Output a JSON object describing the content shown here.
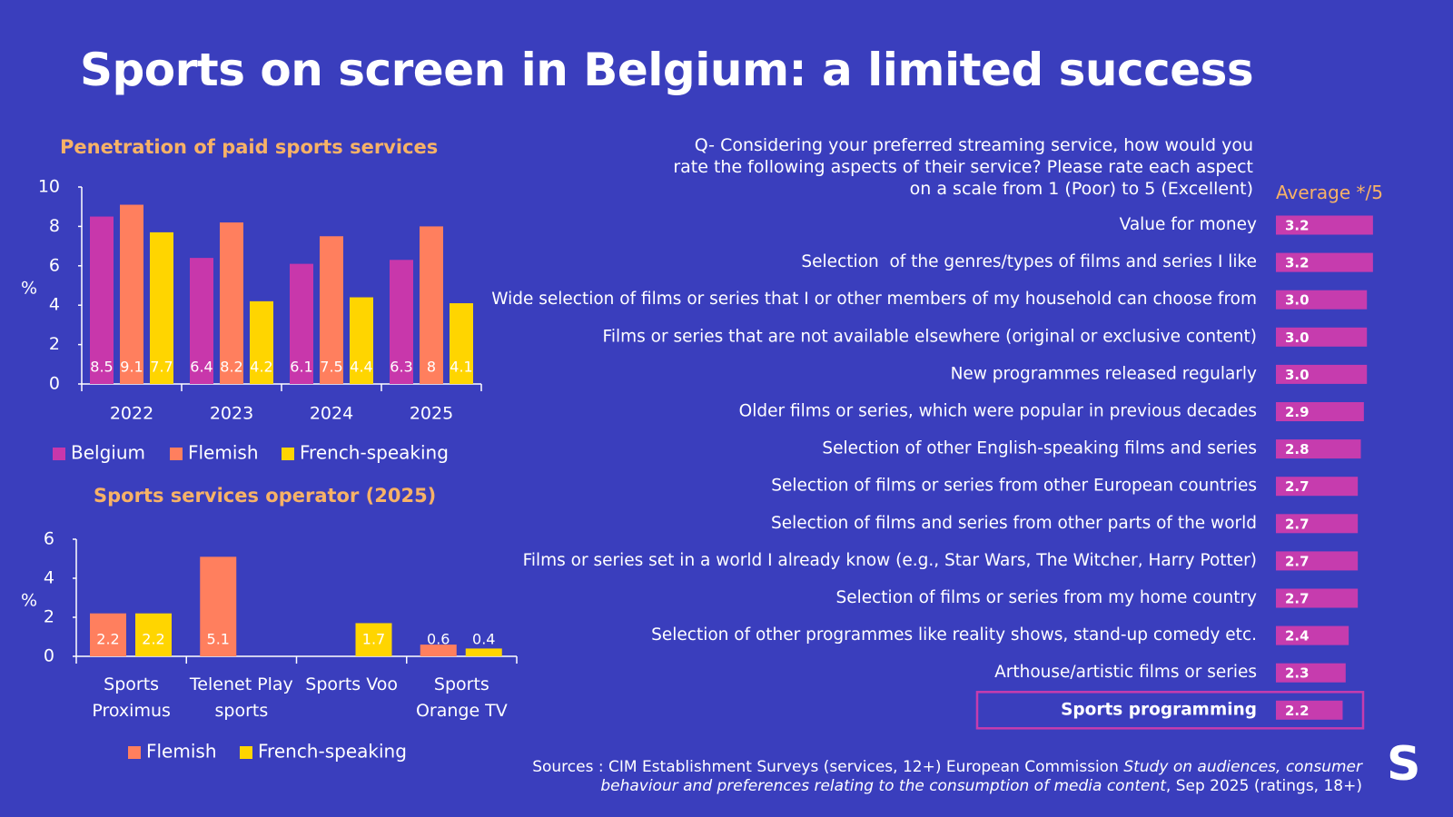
{
  "title": "Sports on screen in Belgium: a limited success",
  "logo": "S",
  "source": {
    "text_start": "Sources : CIM Establishment Surveys (services, 12+) European Commission ",
    "text_italic": "Study on audiences, consumer behaviour and preferences relating to the consumption of media content",
    "text_end": ", Sep 2025 (ratings, 18+)"
  },
  "chart_data": [
    {
      "type": "bar",
      "title": "Penetration of paid sports services",
      "y_label": "%",
      "categories": [
        "2022",
        "2023",
        "2024",
        "2025"
      ],
      "series": [
        {
          "name": "Belgium",
          "color": "#c837ab",
          "values": [
            8.5,
            6.4,
            6.1,
            6.3
          ]
        },
        {
          "name": "Flemish",
          "color": "#ff7f5e",
          "values": [
            9.1,
            8.2,
            7.5,
            8.0
          ]
        },
        {
          "name": "French-speaking",
          "color": "#ffd500",
          "values": [
            7.7,
            4.2,
            4.4,
            4.1
          ]
        }
      ],
      "ylim": [
        0,
        10
      ],
      "yticks": [
        0,
        2,
        4,
        6,
        8,
        10
      ],
      "grid": false,
      "legend": "bottom"
    },
    {
      "type": "bar",
      "title": "Sports services operator (2025)",
      "y_label": "%",
      "categories": [
        "Sports Proximus",
        "Telenet Play sports",
        "Sports Voo",
        "Sports Orange TV"
      ],
      "series": [
        {
          "name": "Flemish",
          "color": "#ff7f5e",
          "values": [
            2.2,
            5.1,
            null,
            0.6
          ]
        },
        {
          "name": "French-speaking",
          "color": "#ffd500",
          "values": [
            2.2,
            null,
            1.7,
            0.4
          ]
        }
      ],
      "ylim": [
        0,
        6
      ],
      "yticks": [
        0,
        2,
        4,
        6
      ],
      "grid": false,
      "legend": "bottom"
    },
    {
      "type": "hbar",
      "title": "Q- Considering your preferred streaming service, how would you rate the following aspects of their service? Please rate each aspect on a scale from 1 (Poor) to 5 (Excellent)",
      "value_header": "Average */5",
      "categories": [
        "Value for money",
        "Selection  of the genres/types of films and series I like",
        "Wide selection of films or series that I or other members of my household can choose from",
        "Films or series that are not available elsewhere (original or exclusive content)",
        "New programmes released regularly",
        "Older films or series, which were popular in previous decades",
        "Selection of other English-speaking films and series",
        "Selection of films or series from other European countries",
        "Selection of films and series from other parts of the world",
        "Films or series set in a world I already know (e.g., Star Wars, The Witcher, Harry Potter)",
        "Selection of films or series from my home country",
        "Selection of other programmes like reality shows, stand-up comedy etc.",
        "Arthouse/artistic films or series",
        "Sports programming"
      ],
      "values": [
        3.2,
        3.2,
        3.0,
        3.0,
        3.0,
        2.9,
        2.8,
        2.7,
        2.7,
        2.7,
        2.7,
        2.4,
        2.3,
        2.2
      ],
      "value_labels": [
        "3.2",
        "3.2",
        "3.0",
        "3.0",
        "3.0",
        "2.9",
        "2.8",
        "2.7",
        "2.7",
        "2.7",
        "2.7",
        "2.4",
        "2.3",
        "2.2"
      ],
      "color": "#c63cae",
      "highlight_index": 13
    }
  ]
}
